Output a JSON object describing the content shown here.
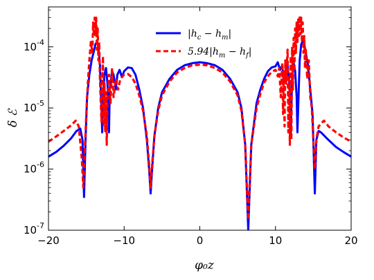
{
  "chart_data": {
    "type": "line",
    "xlabel": "φ₀z",
    "ylabel": "δ ℰ",
    "xlim": [
      -20,
      20
    ],
    "ylim": [
      1e-07,
      0.00045
    ],
    "yscale": "log",
    "x_ticks": [
      -20,
      -10,
      0,
      10,
      20
    ],
    "x_tick_labels": [
      "−20",
      "−10",
      "0",
      "10",
      "20"
    ],
    "y_ticks": [
      1e-07,
      1e-06,
      1e-05,
      0.0001
    ],
    "y_tick_labels": [
      {
        "base": "10",
        "exp": "-7"
      },
      {
        "base": "10",
        "exp": "-6"
      },
      {
        "base": "10",
        "exp": "-5"
      },
      {
        "base": "10",
        "exp": "-4"
      }
    ],
    "grid": false,
    "legend_position": "top-center",
    "series": [
      {
        "name": "|h_c − h_m|",
        "label_parts": {
          "pre": "|h",
          "sub1": "c",
          "mid": " − h",
          "sub2": "m",
          "post": "|"
        },
        "color": "#0000ff",
        "style": "solid",
        "points": [
          [
            -20,
            1.6e-06
          ],
          [
            -19,
            1.9e-06
          ],
          [
            -18,
            2.4e-06
          ],
          [
            -17,
            3.2e-06
          ],
          [
            -16.3,
            4.2e-06
          ],
          [
            -15.8,
            4.6e-06
          ],
          [
            -15.5,
            3e-06
          ],
          [
            -15.3,
            3.5e-07
          ],
          [
            -15.1,
            3e-06
          ],
          [
            -14.9,
            1.5e-05
          ],
          [
            -14.6,
            3.5e-05
          ],
          [
            -14.3,
            6e-05
          ],
          [
            -14.0,
            8.5e-05
          ],
          [
            -13.8,
            0.00011
          ],
          [
            -13.6,
            0.00012
          ],
          [
            -13.4,
            0.0001
          ],
          [
            -13.2,
            5e-05
          ],
          [
            -13.0,
            1e-05
          ],
          [
            -12.9,
            4e-06
          ],
          [
            -12.8,
            1.5e-05
          ],
          [
            -12.6,
            3.5e-05
          ],
          [
            -12.4,
            4.5e-05
          ],
          [
            -12.2,
            2.5e-05
          ],
          [
            -12.0,
            4e-06
          ],
          [
            -11.9,
            2e-05
          ],
          [
            -11.6,
            4e-05
          ],
          [
            -11.4,
            3.5e-05
          ],
          [
            -11.1,
            2e-05
          ],
          [
            -10.9,
            3.5e-05
          ],
          [
            -10.6,
            4.2e-05
          ],
          [
            -10.3,
            3.2e-05
          ],
          [
            -10.0,
            4e-05
          ],
          [
            -9.5,
            4.6e-05
          ],
          [
            -9.0,
            4.5e-05
          ],
          [
            -8.5,
            3.5e-05
          ],
          [
            -8.0,
            2e-05
          ],
          [
            -7.5,
            1e-05
          ],
          [
            -7.0,
            3e-06
          ],
          [
            -6.7,
            1e-06
          ],
          [
            -6.5,
            4e-07
          ],
          [
            -6.3,
            1e-06
          ],
          [
            -6.0,
            3.5e-06
          ],
          [
            -5.5,
            1e-05
          ],
          [
            -5.0,
            1.8e-05
          ],
          [
            -4.0,
            3e-05
          ],
          [
            -3.0,
            4.2e-05
          ],
          [
            -2.0,
            5e-05
          ],
          [
            -1.0,
            5.4e-05
          ],
          [
            0,
            5.6e-05
          ],
          [
            1.0,
            5.4e-05
          ],
          [
            2.0,
            5e-05
          ],
          [
            3.0,
            4.2e-05
          ],
          [
            4.0,
            3e-05
          ],
          [
            5.0,
            1.8e-05
          ],
          [
            5.5,
            1e-05
          ],
          [
            6.0,
            2.5e-06
          ],
          [
            6.2,
            5e-07
          ],
          [
            6.4,
            1e-07
          ],
          [
            6.6,
            5e-07
          ],
          [
            6.8,
            2.5e-06
          ],
          [
            7.5,
            1.2e-05
          ],
          [
            8.0,
            2e-05
          ],
          [
            8.5,
            3e-05
          ],
          [
            9.0,
            4e-05
          ],
          [
            9.5,
            4.6e-05
          ],
          [
            10.0,
            4.8e-05
          ],
          [
            10.3,
            5.6e-05
          ],
          [
            10.6,
            4.2e-05
          ],
          [
            10.9,
            5e-05
          ],
          [
            11.1,
            2.5e-05
          ],
          [
            11.4,
            4.5e-05
          ],
          [
            11.6,
            5e-05
          ],
          [
            11.9,
            2e-05
          ],
          [
            12.0,
            3.5e-06
          ],
          [
            12.2,
            3e-05
          ],
          [
            12.4,
            5.5e-05
          ],
          [
            12.6,
            4e-05
          ],
          [
            12.8,
            1.5e-05
          ],
          [
            12.9,
            4e-06
          ],
          [
            13.0,
            1e-05
          ],
          [
            13.2,
            6e-05
          ],
          [
            13.4,
            0.00011
          ],
          [
            13.6,
            0.000125
          ],
          [
            13.8,
            0.00011
          ],
          [
            14.0,
            8e-05
          ],
          [
            14.3,
            5e-05
          ],
          [
            14.6,
            2e-05
          ],
          [
            14.9,
            8e-06
          ],
          [
            15.0,
            3e-06
          ],
          [
            15.2,
            4e-07
          ],
          [
            15.4,
            3e-06
          ],
          [
            15.7,
            4.2e-06
          ],
          [
            16.0,
            4e-06
          ],
          [
            17,
            3e-06
          ],
          [
            18,
            2.3e-06
          ],
          [
            19,
            1.9e-06
          ],
          [
            20,
            1.6e-06
          ]
        ]
      },
      {
        "name": "5.94|h_m − h_f|",
        "label_parts": {
          "pre": "5.94|h",
          "sub1": "m",
          "mid": " − h",
          "sub2": "f",
          "post": "|"
        },
        "color": "#ff0000",
        "style": "dashed",
        "points": [
          [
            -20,
            2.8e-06
          ],
          [
            -19,
            3.4e-06
          ],
          [
            -18,
            4.2e-06
          ],
          [
            -17,
            5.2e-06
          ],
          [
            -16.4,
            6.2e-06
          ],
          [
            -16.0,
            5e-06
          ],
          [
            -15.6,
            1.5e-06
          ],
          [
            -15.4,
            5e-07
          ],
          [
            -15.2,
            2e-06
          ],
          [
            -15.0,
            8e-06
          ],
          [
            -14.8,
            2.5e-05
          ],
          [
            -14.6,
            6e-05
          ],
          [
            -14.4,
            0.00012
          ],
          [
            -14.2,
            8e-05
          ],
          [
            -14.1,
            0.00025
          ],
          [
            -14.0,
            0.00015
          ],
          [
            -13.9,
            0.0003
          ],
          [
            -13.8,
            0.00015
          ],
          [
            -13.7,
            0.0003
          ],
          [
            -13.6,
            9e-05
          ],
          [
            -13.5,
            0.0002
          ],
          [
            -13.4,
            6e-05
          ],
          [
            -13.3,
            0.00012
          ],
          [
            -13.2,
            3e-05
          ],
          [
            -13.0,
            6e-06
          ],
          [
            -12.9,
            2e-05
          ],
          [
            -12.8,
            7e-05
          ],
          [
            -12.7,
            5e-06
          ],
          [
            -12.6,
            2.5e-05
          ],
          [
            -12.5,
            4e-06
          ],
          [
            -12.4,
            1.8e-05
          ],
          [
            -12.3,
            2.5e-06
          ],
          [
            -12.2,
            1.5e-05
          ],
          [
            -12.0,
            3.5e-05
          ],
          [
            -11.8,
            1.2e-05
          ],
          [
            -11.6,
            4.5e-05
          ],
          [
            -11.4,
            1.5e-05
          ],
          [
            -11.1,
            3e-05
          ],
          [
            -10.8,
            2e-05
          ],
          [
            -10.5,
            3e-05
          ],
          [
            -10.0,
            3.5e-05
          ],
          [
            -9.5,
            3.6e-05
          ],
          [
            -9.0,
            3.2e-05
          ],
          [
            -8.5,
            2.5e-05
          ],
          [
            -8.0,
            1.6e-05
          ],
          [
            -7.5,
            9e-06
          ],
          [
            -7.0,
            3.5e-06
          ],
          [
            -6.7,
            1.2e-06
          ],
          [
            -6.5,
            5e-07
          ],
          [
            -6.3,
            1.2e-06
          ],
          [
            -6.0,
            3.5e-06
          ],
          [
            -5.5,
            9e-06
          ],
          [
            -5.0,
            1.6e-05
          ],
          [
            -4.0,
            2.7e-05
          ],
          [
            -3.0,
            3.8e-05
          ],
          [
            -2.0,
            4.5e-05
          ],
          [
            -1.0,
            5e-05
          ],
          [
            0,
            5.1e-05
          ],
          [
            1.0,
            5e-05
          ],
          [
            2.0,
            4.5e-05
          ],
          [
            3.0,
            3.8e-05
          ],
          [
            4.0,
            2.7e-05
          ],
          [
            5.0,
            1.6e-05
          ],
          [
            5.5,
            9e-06
          ],
          [
            6.0,
            2.5e-06
          ],
          [
            6.2,
            6e-07
          ],
          [
            6.4,
            1.5e-07
          ],
          [
            6.6,
            6e-07
          ],
          [
            6.8,
            2.5e-06
          ],
          [
            7.5,
            1e-05
          ],
          [
            8.0,
            1.7e-05
          ],
          [
            8.5,
            2.6e-05
          ],
          [
            9.0,
            3.3e-05
          ],
          [
            9.5,
            3.9e-05
          ],
          [
            10.0,
            4.2e-05
          ],
          [
            10.3,
            3.3e-05
          ],
          [
            10.5,
            4.5e-05
          ],
          [
            10.7,
            1.5e-05
          ],
          [
            10.9,
            5.5e-05
          ],
          [
            11.0,
            8e-06
          ],
          [
            11.1,
            4e-05
          ],
          [
            11.2,
            5e-06
          ],
          [
            11.3,
            6e-05
          ],
          [
            11.4,
            2.5e-05
          ],
          [
            11.6,
            9e-05
          ],
          [
            11.7,
            4e-06
          ],
          [
            11.8,
            3e-05
          ],
          [
            11.9,
            2.5e-06
          ],
          [
            12.0,
            7e-05
          ],
          [
            12.1,
            3e-06
          ],
          [
            12.2,
            0.0001
          ],
          [
            12.3,
            2e-05
          ],
          [
            12.4,
            0.00014
          ],
          [
            12.5,
            4e-05
          ],
          [
            12.6,
            0.0002
          ],
          [
            12.7,
            8e-05
          ],
          [
            12.8,
            0.00025
          ],
          [
            12.9,
            0.00012
          ],
          [
            13.0,
            0.00028
          ],
          [
            13.1,
            0.00015
          ],
          [
            13.2,
            0.00032
          ],
          [
            13.3,
            0.00016
          ],
          [
            13.4,
            0.0003
          ],
          [
            13.5,
            0.00012
          ],
          [
            13.6,
            0.00025
          ],
          [
            13.7,
            8e-05
          ],
          [
            13.8,
            0.00015
          ],
          [
            13.9,
            4.5e-05
          ],
          [
            14.0,
            9e-05
          ],
          [
            14.2,
            3e-05
          ],
          [
            14.4,
            6e-05
          ],
          [
            14.6,
            1.5e-05
          ],
          [
            14.8,
            1e-05
          ],
          [
            15.0,
            3e-06
          ],
          [
            15.2,
            1e-06
          ],
          [
            15.4,
            3e-06
          ],
          [
            15.7,
            5e-06
          ],
          [
            16.0,
            5.5e-06
          ],
          [
            16.4,
            6.2e-06
          ],
          [
            17,
            5e-06
          ],
          [
            18,
            4e-06
          ],
          [
            19,
            3.3e-06
          ],
          [
            20,
            2.8e-06
          ]
        ]
      }
    ]
  }
}
